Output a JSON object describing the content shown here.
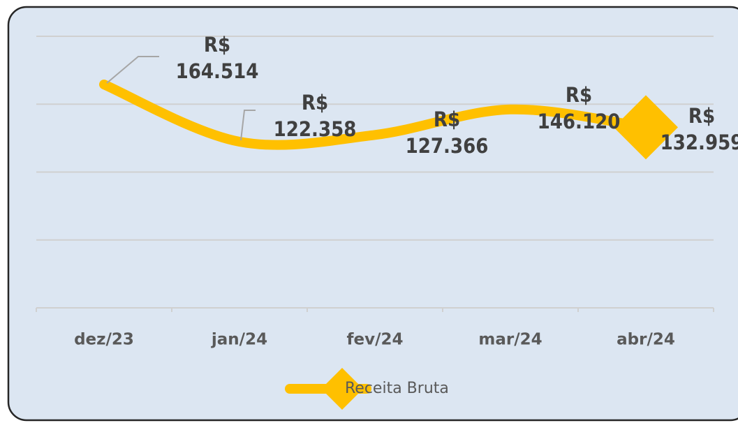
{
  "chart_data": {
    "type": "line",
    "categories": [
      "dez/23",
      "jan/24",
      "fev/24",
      "mar/24",
      "abr/24"
    ],
    "series": [
      {
        "name": "Receita Bruta",
        "color": "#FFC000",
        "values": [
          164514,
          122358,
          127366,
          146120,
          132959
        ],
        "value_labels": [
          "R$ 164.514",
          "R$ 122.358",
          "R$ 127.366",
          "R$ 146.120",
          "R$ 132.959"
        ]
      }
    ],
    "ylim": [
      0,
      200000
    ],
    "yticks": [
      0,
      50000,
      100000,
      150000,
      200000
    ],
    "grid": true,
    "legend": "bottom"
  }
}
